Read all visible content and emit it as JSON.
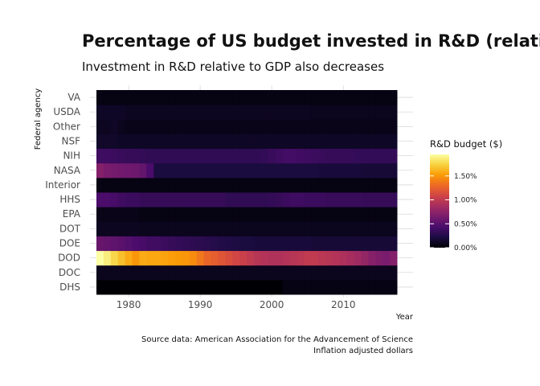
{
  "chart_data": {
    "type": "heatmap",
    "title": "Percentage of US budget invested in R&D (relative to GDP)",
    "subtitle": "Investment in R&D relative to GDP also decreases",
    "xlabel": "Year",
    "ylabel": "Federal agency",
    "x_ticks": [
      "1980",
      "1990",
      "2000",
      "2010"
    ],
    "xlim": [
      1976,
      2017
    ],
    "agencies": [
      "DHS",
      "DOC",
      "DOD",
      "DOE",
      "DOT",
      "EPA",
      "HHS",
      "Interior",
      "NASA",
      "NIH",
      "NSF",
      "Other",
      "USDA",
      "VA"
    ],
    "legend": {
      "title": "R&D budget ($)",
      "ticks": [
        "0.00%",
        "0.50%",
        "1.00%",
        "1.50%"
      ],
      "tick_values": [
        0.0,
        0.5,
        1.0,
        1.5
      ],
      "range": [
        0.0,
        1.95
      ]
    },
    "series": [
      {
        "agency": "DHS",
        "value_pct": [
          0,
          0,
          0,
          0,
          0,
          0,
          0,
          0,
          0,
          0,
          0,
          0,
          0,
          0,
          0,
          0,
          0,
          0,
          0,
          0,
          0,
          0,
          0,
          0,
          0,
          0,
          0.02,
          0.02,
          0.02,
          0.02,
          0.02,
          0.02,
          0.02,
          0.02,
          0.02,
          0.02,
          0.02,
          0.02,
          0.02,
          0.02,
          0.02,
          0.02
        ]
      },
      {
        "agency": "DOC",
        "value_pct": [
          0.04,
          0.04,
          0.04,
          0.04,
          0.04,
          0.04,
          0.04,
          0.04,
          0.04,
          0.04,
          0.04,
          0.04,
          0.04,
          0.04,
          0.04,
          0.04,
          0.04,
          0.04,
          0.04,
          0.04,
          0.04,
          0.04,
          0.04,
          0.04,
          0.04,
          0.04,
          0.04,
          0.04,
          0.04,
          0.04,
          0.04,
          0.04,
          0.04,
          0.04,
          0.04,
          0.04,
          0.04,
          0.04,
          0.04,
          0.04,
          0.04,
          0.04
        ]
      },
      {
        "agency": "DOD",
        "value_pct": [
          1.95,
          1.85,
          1.72,
          1.6,
          1.5,
          1.4,
          1.5,
          1.48,
          1.48,
          1.46,
          1.44,
          1.42,
          1.4,
          1.35,
          1.25,
          1.15,
          1.1,
          1.05,
          1.0,
          0.95,
          0.9,
          0.85,
          0.8,
          0.78,
          0.76,
          0.76,
          0.78,
          0.8,
          0.82,
          0.85,
          0.85,
          0.82,
          0.8,
          0.78,
          0.75,
          0.72,
          0.68,
          0.62,
          0.56,
          0.52,
          0.5,
          0.55
        ]
      },
      {
        "agency": "DOE",
        "value_pct": [
          0.42,
          0.4,
          0.38,
          0.36,
          0.33,
          0.3,
          0.28,
          0.26,
          0.26,
          0.24,
          0.22,
          0.21,
          0.2,
          0.19,
          0.18,
          0.17,
          0.16,
          0.15,
          0.14,
          0.13,
          0.12,
          0.12,
          0.11,
          0.11,
          0.11,
          0.11,
          0.11,
          0.11,
          0.11,
          0.11,
          0.1,
          0.1,
          0.1,
          0.1,
          0.1,
          0.1,
          0.1,
          0.1,
          0.1,
          0.1,
          0.1,
          0.1
        ]
      },
      {
        "agency": "DOT",
        "value_pct": [
          0.05,
          0.05,
          0.05,
          0.05,
          0.05,
          0.05,
          0.04,
          0.04,
          0.04,
          0.04,
          0.04,
          0.04,
          0.04,
          0.04,
          0.04,
          0.04,
          0.04,
          0.04,
          0.04,
          0.04,
          0.04,
          0.04,
          0.04,
          0.04,
          0.04,
          0.04,
          0.04,
          0.04,
          0.04,
          0.04,
          0.04,
          0.04,
          0.04,
          0.04,
          0.04,
          0.04,
          0.04,
          0.04,
          0.04,
          0.04,
          0.04,
          0.04
        ]
      },
      {
        "agency": "EPA",
        "value_pct": [
          0.03,
          0.03,
          0.03,
          0.03,
          0.03,
          0.03,
          0.02,
          0.02,
          0.02,
          0.02,
          0.02,
          0.02,
          0.02,
          0.02,
          0.02,
          0.02,
          0.02,
          0.02,
          0.02,
          0.02,
          0.02,
          0.02,
          0.02,
          0.02,
          0.02,
          0.02,
          0.02,
          0.02,
          0.02,
          0.02,
          0.02,
          0.02,
          0.02,
          0.02,
          0.02,
          0.02,
          0.02,
          0.02,
          0.02,
          0.02,
          0.02,
          0.02
        ]
      },
      {
        "agency": "HHS",
        "value_pct": [
          0.3,
          0.3,
          0.28,
          0.26,
          0.24,
          0.24,
          0.22,
          0.22,
          0.22,
          0.22,
          0.22,
          0.22,
          0.22,
          0.22,
          0.22,
          0.22,
          0.22,
          0.22,
          0.2,
          0.2,
          0.2,
          0.2,
          0.2,
          0.2,
          0.21,
          0.22,
          0.24,
          0.25,
          0.25,
          0.24,
          0.24,
          0.24,
          0.23,
          0.23,
          0.23,
          0.23,
          0.23,
          0.22,
          0.22,
          0.22,
          0.22,
          0.22
        ]
      },
      {
        "agency": "Interior",
        "value_pct": [
          0.02,
          0.02,
          0.02,
          0.02,
          0.02,
          0.02,
          0.02,
          0.02,
          0.02,
          0.02,
          0.02,
          0.02,
          0.02,
          0.02,
          0.02,
          0.02,
          0.02,
          0.02,
          0.02,
          0.02,
          0.02,
          0.02,
          0.02,
          0.02,
          0.02,
          0.02,
          0.02,
          0.02,
          0.02,
          0.02,
          0.02,
          0.02,
          0.02,
          0.02,
          0.02,
          0.02,
          0.02,
          0.02,
          0.02,
          0.02,
          0.02,
          0.02
        ]
      },
      {
        "agency": "NASA",
        "value_pct": [
          0.55,
          0.5,
          0.48,
          0.46,
          0.45,
          0.44,
          0.4,
          0.3,
          0.12,
          0.12,
          0.12,
          0.12,
          0.12,
          0.12,
          0.12,
          0.12,
          0.12,
          0.12,
          0.12,
          0.12,
          0.12,
          0.12,
          0.12,
          0.12,
          0.12,
          0.12,
          0.12,
          0.12,
          0.12,
          0.12,
          0.12,
          0.11,
          0.11,
          0.11,
          0.11,
          0.11,
          0.11,
          0.1,
          0.1,
          0.1,
          0.1,
          0.1
        ]
      },
      {
        "agency": "NIH",
        "value_pct": [
          0.25,
          0.25,
          0.24,
          0.23,
          0.22,
          0.22,
          0.21,
          0.2,
          0.2,
          0.2,
          0.2,
          0.2,
          0.2,
          0.2,
          0.2,
          0.2,
          0.2,
          0.2,
          0.2,
          0.2,
          0.2,
          0.2,
          0.2,
          0.21,
          0.23,
          0.25,
          0.27,
          0.27,
          0.26,
          0.25,
          0.24,
          0.23,
          0.22,
          0.22,
          0.22,
          0.22,
          0.21,
          0.21,
          0.21,
          0.21,
          0.21,
          0.21
        ]
      },
      {
        "agency": "NSF",
        "value_pct": [
          0.07,
          0.07,
          0.07,
          0.06,
          0.06,
          0.06,
          0.06,
          0.06,
          0.06,
          0.06,
          0.06,
          0.06,
          0.06,
          0.06,
          0.06,
          0.06,
          0.06,
          0.06,
          0.06,
          0.06,
          0.06,
          0.06,
          0.06,
          0.06,
          0.06,
          0.06,
          0.06,
          0.06,
          0.06,
          0.06,
          0.06,
          0.06,
          0.06,
          0.06,
          0.06,
          0.06,
          0.06,
          0.06,
          0.06,
          0.06,
          0.06,
          0.06
        ]
      },
      {
        "agency": "Other",
        "value_pct": [
          0.05,
          0.05,
          0.06,
          0.04,
          0.03,
          0.03,
          0.03,
          0.03,
          0.03,
          0.03,
          0.03,
          0.03,
          0.03,
          0.03,
          0.03,
          0.03,
          0.03,
          0.03,
          0.03,
          0.03,
          0.03,
          0.03,
          0.03,
          0.03,
          0.03,
          0.03,
          0.03,
          0.03,
          0.03,
          0.03,
          0.03,
          0.03,
          0.03,
          0.03,
          0.03,
          0.03,
          0.03,
          0.03,
          0.03,
          0.03,
          0.03,
          0.03
        ]
      },
      {
        "agency": "USDA",
        "value_pct": [
          0.06,
          0.06,
          0.06,
          0.06,
          0.05,
          0.05,
          0.05,
          0.05,
          0.05,
          0.05,
          0.05,
          0.05,
          0.05,
          0.05,
          0.05,
          0.05,
          0.05,
          0.05,
          0.05,
          0.05,
          0.05,
          0.05,
          0.05,
          0.05,
          0.05,
          0.05,
          0.05,
          0.05,
          0.05,
          0.05,
          0.04,
          0.04,
          0.04,
          0.04,
          0.04,
          0.04,
          0.04,
          0.04,
          0.04,
          0.04,
          0.04,
          0.04
        ]
      },
      {
        "agency": "VA",
        "value_pct": [
          0.02,
          0.02,
          0.02,
          0.02,
          0.02,
          0.02,
          0.02,
          0.02,
          0.02,
          0.02,
          0.02,
          0.02,
          0.02,
          0.02,
          0.02,
          0.02,
          0.02,
          0.02,
          0.02,
          0.02,
          0.02,
          0.02,
          0.02,
          0.02,
          0.02,
          0.02,
          0.02,
          0.02,
          0.02,
          0.02,
          0.02,
          0.02,
          0.02,
          0.02,
          0.02,
          0.02,
          0.02,
          0.02,
          0.02,
          0.02,
          0.02,
          0.02
        ]
      }
    ],
    "caption": [
      "Source data: American Association for the Advancement of Science",
      "Inflation adjusted dollars"
    ]
  },
  "colors": {
    "background": "#ffffff",
    "grid": "#d9d9d9",
    "palette": [
      "#000004",
      "#1b0c41",
      "#4a0c6b",
      "#781c6d",
      "#a52c60",
      "#cf4446",
      "#ed6925",
      "#fb9b06",
      "#f7d13d",
      "#fcffa4"
    ]
  }
}
